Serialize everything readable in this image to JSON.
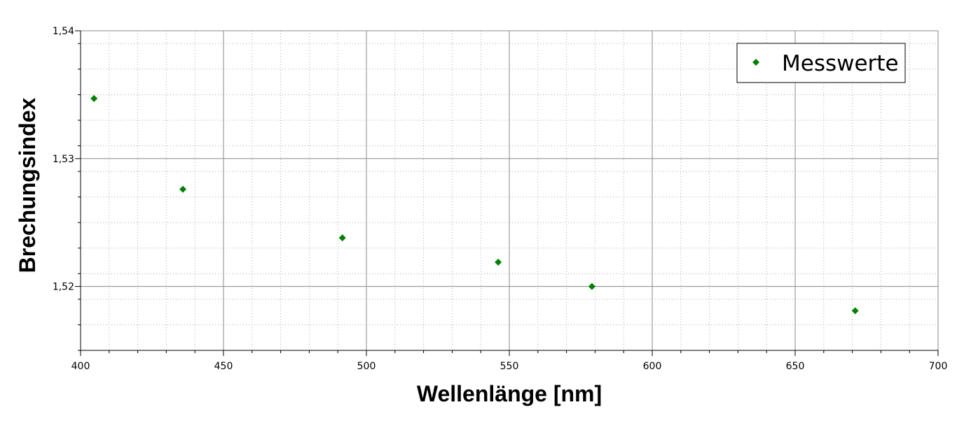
{
  "chart_data": {
    "type": "scatter",
    "title": "",
    "xlabel": "Wellenlänge [nm]",
    "ylabel": "Brechungsindex",
    "xlim": [
      400,
      700
    ],
    "ylim": [
      1.515,
      1.54
    ],
    "x_major_ticks": [
      400,
      450,
      500,
      550,
      600,
      650,
      700
    ],
    "x_tick_labels": [
      "400",
      "450",
      "500",
      "550",
      "600",
      "650",
      "700"
    ],
    "x_minor_step": 10,
    "y_major_ticks": [
      1.52,
      1.53,
      1.54
    ],
    "y_tick_labels": [
      "1,52",
      "1,53",
      "1,54"
    ],
    "y_minor_step": 0.002,
    "grid": true,
    "legend_position": "top-right",
    "series": [
      {
        "name": "Messwerte",
        "marker": "diamond",
        "color": "#008000",
        "x": [
          404.7,
          435.8,
          491.6,
          546.1,
          578.9,
          671.0
        ],
        "y": [
          1.5347,
          1.5276,
          1.5238,
          1.5219,
          1.52,
          1.5181
        ]
      }
    ]
  }
}
